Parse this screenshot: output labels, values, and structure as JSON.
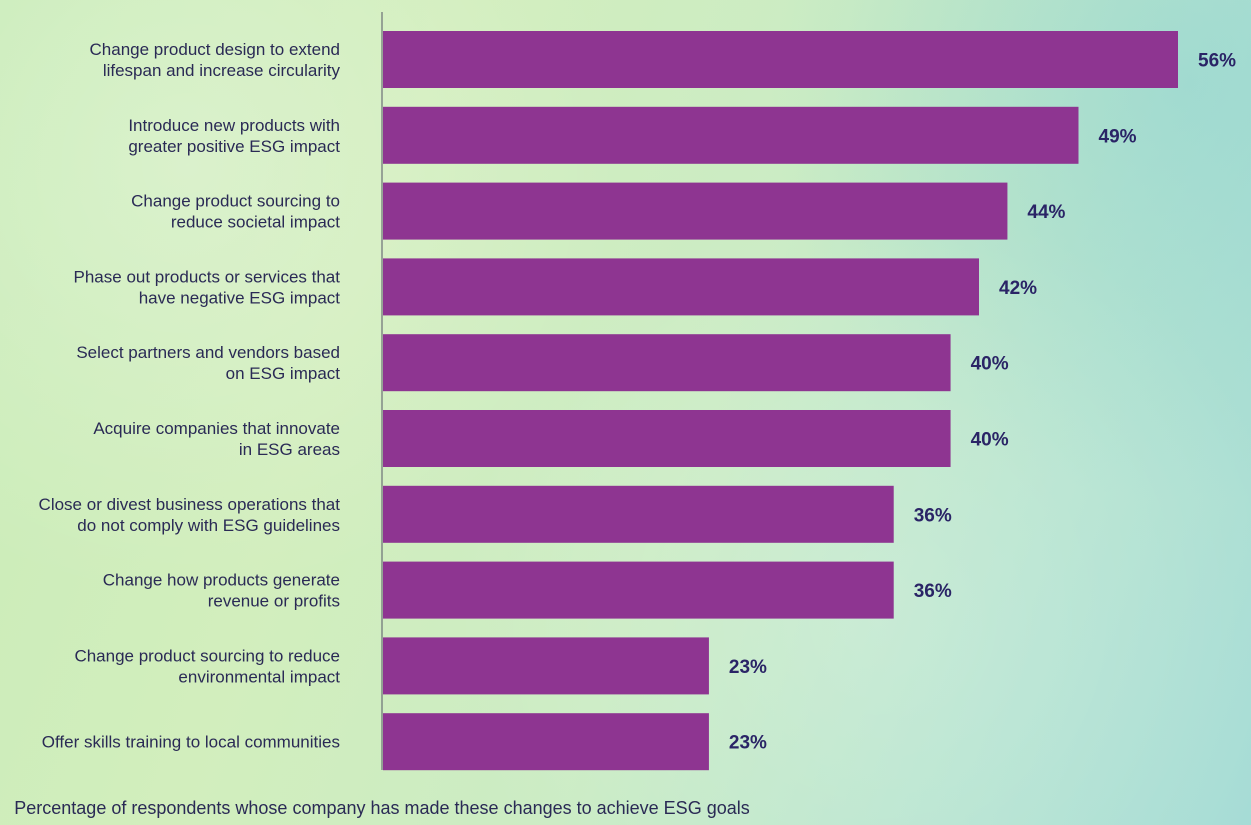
{
  "chart_data": {
    "type": "bar",
    "orientation": "horizontal",
    "categories": [
      [
        "Change product design to extend",
        "lifespan and increase circularity"
      ],
      [
        "Introduce new products with",
        "greater positive ESG impact"
      ],
      [
        "Change product sourcing to",
        "reduce societal impact"
      ],
      [
        "Phase out products or services that",
        "have negative ESG impact"
      ],
      [
        "Select partners and vendors based",
        "on ESG impact"
      ],
      [
        "Acquire companies that innovate",
        "in ESG areas"
      ],
      [
        "Close or divest business operations that",
        "do not comply with ESG guidelines"
      ],
      [
        "Change how products generate",
        "revenue or profits"
      ],
      [
        "Change product sourcing to reduce",
        "environmental impact"
      ],
      [
        "Offer skills training to local communities"
      ]
    ],
    "values": [
      56,
      49,
      44,
      42,
      40,
      40,
      36,
      36,
      23,
      23
    ],
    "value_labels": [
      "56%",
      "49%",
      "44%",
      "42%",
      "40%",
      "40%",
      "36%",
      "36%",
      "23%",
      "23%"
    ],
    "xlabel": "Percentage of respondents whose company has made these changes to achieve ESG goals",
    "bar_color": "#8e3591",
    "value_label_color": "#2a2466",
    "grid": false,
    "legend": "none"
  }
}
